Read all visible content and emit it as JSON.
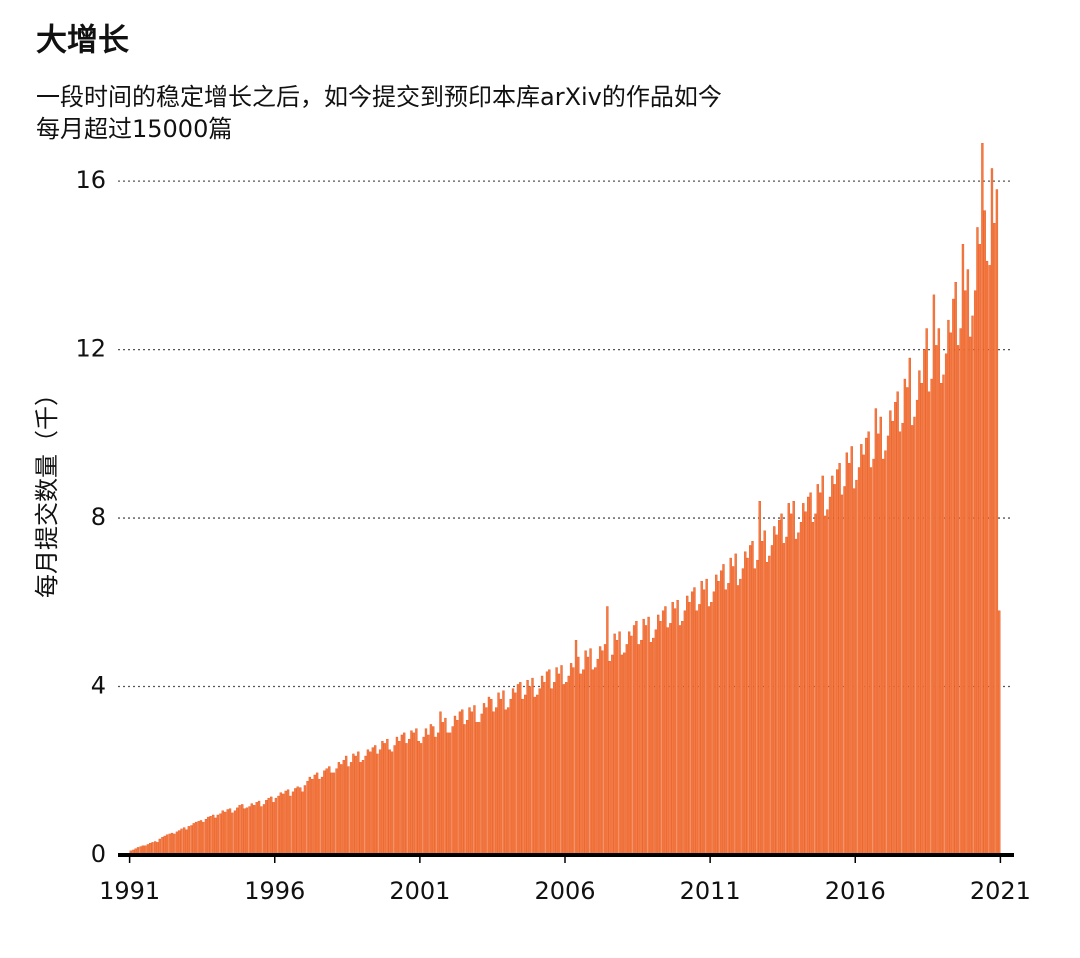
{
  "chart_data": {
    "type": "bar",
    "title": "大增长",
    "subtitle": [
      "一段时间的稳定增长之后，如今提交到预印本库arXiv的作品如今",
      "每月超过15000篇"
    ],
    "y_label": "每月提交数量（千）",
    "color": "#f47a42",
    "xlim": [
      1990.6,
      2021.4
    ],
    "xticks": [
      1991,
      1996,
      2001,
      2006,
      2011,
      2016,
      2021
    ],
    "ylim": [
      0,
      17
    ],
    "yticks": [
      0,
      4,
      8,
      12,
      16
    ],
    "grid": true,
    "x": [
      1991.04,
      1991.13,
      1991.21,
      1991.29,
      1991.38,
      1991.46,
      1991.54,
      1991.63,
      1991.71,
      1991.79,
      1991.88,
      1991.96,
      1992.04,
      1992.13,
      1992.21,
      1992.29,
      1992.38,
      1992.46,
      1992.54,
      1992.63,
      1992.71,
      1992.79,
      1992.88,
      1992.96,
      1993.04,
      1993.13,
      1993.21,
      1993.29,
      1993.38,
      1993.46,
      1993.54,
      1993.63,
      1993.71,
      1993.79,
      1993.88,
      1993.96,
      1994.04,
      1994.13,
      1994.21,
      1994.29,
      1994.38,
      1994.46,
      1994.54,
      1994.63,
      1994.71,
      1994.79,
      1994.88,
      1994.96,
      1995.04,
      1995.13,
      1995.21,
      1995.29,
      1995.38,
      1995.46,
      1995.54,
      1995.63,
      1995.71,
      1995.79,
      1995.88,
      1995.96,
      1996.04,
      1996.13,
      1996.21,
      1996.29,
      1996.38,
      1996.46,
      1996.54,
      1996.63,
      1996.71,
      1996.79,
      1996.88,
      1996.96,
      1997.04,
      1997.13,
      1997.21,
      1997.29,
      1997.38,
      1997.46,
      1997.54,
      1997.63,
      1997.71,
      1997.79,
      1997.88,
      1997.96,
      1998.04,
      1998.13,
      1998.21,
      1998.29,
      1998.38,
      1998.46,
      1998.54,
      1998.63,
      1998.71,
      1998.79,
      1998.88,
      1998.96,
      1999.04,
      1999.13,
      1999.21,
      1999.29,
      1999.38,
      1999.46,
      1999.54,
      1999.63,
      1999.71,
      1999.79,
      1999.88,
      1999.96,
      2000.04,
      2000.13,
      2000.21,
      2000.29,
      2000.38,
      2000.46,
      2000.54,
      2000.63,
      2000.71,
      2000.79,
      2000.88,
      2000.96,
      2001.04,
      2001.13,
      2001.21,
      2001.29,
      2001.38,
      2001.46,
      2001.54,
      2001.63,
      2001.71,
      2001.79,
      2001.88,
      2001.96,
      2002.04,
      2002.13,
      2002.21,
      2002.29,
      2002.38,
      2002.46,
      2002.54,
      2002.63,
      2002.71,
      2002.79,
      2002.88,
      2002.96,
      2003.04,
      2003.13,
      2003.21,
      2003.29,
      2003.38,
      2003.46,
      2003.54,
      2003.63,
      2003.71,
      2003.79,
      2003.88,
      2003.96,
      2004.04,
      2004.13,
      2004.21,
      2004.29,
      2004.38,
      2004.46,
      2004.54,
      2004.63,
      2004.71,
      2004.79,
      2004.88,
      2004.96,
      2005.04,
      2005.13,
      2005.21,
      2005.29,
      2005.38,
      2005.46,
      2005.54,
      2005.63,
      2005.71,
      2005.79,
      2005.88,
      2005.96,
      2006.04,
      2006.13,
      2006.21,
      2006.29,
      2006.38,
      2006.46,
      2006.54,
      2006.63,
      2006.71,
      2006.79,
      2006.88,
      2006.96,
      2007.04,
      2007.13,
      2007.21,
      2007.29,
      2007.38,
      2007.46,
      2007.54,
      2007.63,
      2007.71,
      2007.79,
      2007.88,
      2007.96,
      2008.04,
      2008.13,
      2008.21,
      2008.29,
      2008.38,
      2008.46,
      2008.54,
      2008.63,
      2008.71,
      2008.79,
      2008.88,
      2008.96,
      2009.04,
      2009.13,
      2009.21,
      2009.29,
      2009.38,
      2009.46,
      2009.54,
      2009.63,
      2009.71,
      2009.79,
      2009.88,
      2009.96,
      2010.04,
      2010.13,
      2010.21,
      2010.29,
      2010.38,
      2010.46,
      2010.54,
      2010.63,
      2010.71,
      2010.79,
      2010.88,
      2010.96,
      2011.04,
      2011.13,
      2011.21,
      2011.29,
      2011.38,
      2011.46,
      2011.54,
      2011.63,
      2011.71,
      2011.79,
      2011.88,
      2011.96,
      2012.04,
      2012.13,
      2012.21,
      2012.29,
      2012.38,
      2012.46,
      2012.54,
      2012.63,
      2012.71,
      2012.79,
      2012.88,
      2012.96,
      2013.04,
      2013.13,
      2013.21,
      2013.29,
      2013.38,
      2013.46,
      2013.54,
      2013.63,
      2013.71,
      2013.79,
      2013.88,
      2013.96,
      2014.04,
      2014.13,
      2014.21,
      2014.29,
      2014.38,
      2014.46,
      2014.54,
      2014.63,
      2014.71,
      2014.79,
      2014.88,
      2014.96,
      2015.04,
      2015.13,
      2015.21,
      2015.29,
      2015.38,
      2015.46,
      2015.54,
      2015.63,
      2015.71,
      2015.79,
      2015.88,
      2015.96,
      2016.04,
      2016.13,
      2016.21,
      2016.29,
      2016.38,
      2016.46,
      2016.54,
      2016.63,
      2016.71,
      2016.79,
      2016.88,
      2016.96,
      2017.04,
      2017.13,
      2017.21,
      2017.29,
      2017.38,
      2017.46,
      2017.54,
      2017.63,
      2017.71,
      2017.79,
      2017.88,
      2017.96,
      2018.04,
      2018.13,
      2018.21,
      2018.29,
      2018.38,
      2018.46,
      2018.54,
      2018.63,
      2018.71,
      2018.79,
      2018.88,
      2018.96,
      2019.04,
      2019.13,
      2019.21,
      2019.29,
      2019.38,
      2019.46,
      2019.54,
      2019.63,
      2019.71,
      2019.79,
      2019.88,
      2019.96,
      2020.04,
      2020.13,
      2020.21,
      2020.29,
      2020.38,
      2020.46,
      2020.54,
      2020.63,
      2020.71,
      2020.79,
      2020.88,
      2020.96
    ],
    "values": [
      0.1,
      0.12,
      0.15,
      0.18,
      0.2,
      0.22,
      0.22,
      0.25,
      0.28,
      0.3,
      0.32,
      0.3,
      0.38,
      0.42,
      0.45,
      0.48,
      0.5,
      0.52,
      0.5,
      0.55,
      0.58,
      0.62,
      0.65,
      0.6,
      0.68,
      0.7,
      0.75,
      0.78,
      0.8,
      0.82,
      0.78,
      0.85,
      0.9,
      0.92,
      0.95,
      0.88,
      0.95,
      0.98,
      1.05,
      1.02,
      1.08,
      1.1,
      1.0,
      1.05,
      1.12,
      1.18,
      1.2,
      1.1,
      1.12,
      1.15,
      1.22,
      1.18,
      1.25,
      1.28,
      1.15,
      1.2,
      1.3,
      1.35,
      1.38,
      1.25,
      1.35,
      1.4,
      1.48,
      1.45,
      1.52,
      1.55,
      1.4,
      1.5,
      1.58,
      1.62,
      1.6,
      1.5,
      1.65,
      1.75,
      1.85,
      1.8,
      1.9,
      1.95,
      1.8,
      1.85,
      2.0,
      2.05,
      2.1,
      1.95,
      1.95,
      2.05,
      2.2,
      2.15,
      2.25,
      2.35,
      2.1,
      2.2,
      2.4,
      2.35,
      2.45,
      2.2,
      2.25,
      2.35,
      2.5,
      2.45,
      2.55,
      2.6,
      2.4,
      2.5,
      2.7,
      2.65,
      2.75,
      2.5,
      2.45,
      2.6,
      2.8,
      2.7,
      2.85,
      2.9,
      2.65,
      2.75,
      2.95,
      2.9,
      3.0,
      2.7,
      2.65,
      2.8,
      3.0,
      2.85,
      3.1,
      3.05,
      2.8,
      2.9,
      3.4,
      3.15,
      3.25,
      2.9,
      2.9,
      3.05,
      3.3,
      3.2,
      3.4,
      3.45,
      3.1,
      3.2,
      3.5,
      3.4,
      3.55,
      3.15,
      3.15,
      3.35,
      3.6,
      3.5,
      3.75,
      3.7,
      3.4,
      3.5,
      3.85,
      3.7,
      3.9,
      3.45,
      3.5,
      3.7,
      3.95,
      3.85,
      4.05,
      4.1,
      3.7,
      3.8,
      4.15,
      4.0,
      4.2,
      3.75,
      3.8,
      3.95,
      4.25,
      4.1,
      4.35,
      4.4,
      3.95,
      4.1,
      4.45,
      4.3,
      4.5,
      4.05,
      4.1,
      4.25,
      4.55,
      4.45,
      5.1,
      4.7,
      4.3,
      4.4,
      4.85,
      4.7,
      4.9,
      4.4,
      4.45,
      4.65,
      4.95,
      4.85,
      5.0,
      5.9,
      4.6,
      4.75,
      5.25,
      5.1,
      5.3,
      4.75,
      4.8,
      5.0,
      5.3,
      5.2,
      5.45,
      5.55,
      5.0,
      5.1,
      5.6,
      5.45,
      5.65,
      5.05,
      5.15,
      5.35,
      5.7,
      5.55,
      5.8,
      5.9,
      5.4,
      5.5,
      6.0,
      5.85,
      6.05,
      5.45,
      5.55,
      5.8,
      6.15,
      6.0,
      6.25,
      6.35,
      5.8,
      5.95,
      6.5,
      6.3,
      6.55,
      5.9,
      6.0,
      6.25,
      6.65,
      6.5,
      6.75,
      6.9,
      6.3,
      6.45,
      7.05,
      6.85,
      7.15,
      6.4,
      6.55,
      6.8,
      7.2,
      7.05,
      7.35,
      7.45,
      6.8,
      7.0,
      8.4,
      7.45,
      7.7,
      6.95,
      7.1,
      7.35,
      7.8,
      7.6,
      7.95,
      8.1,
      7.4,
      7.55,
      8.35,
      8.1,
      8.4,
      7.5,
      7.65,
      7.9,
      8.35,
      8.15,
      8.5,
      8.6,
      7.9,
      8.1,
      8.8,
      8.6,
      9.0,
      8.05,
      8.2,
      8.5,
      9.0,
      8.8,
      9.15,
      9.3,
      8.55,
      8.75,
      9.55,
      9.3,
      9.7,
      8.7,
      8.9,
      9.2,
      9.75,
      9.5,
      9.9,
      10.05,
      9.2,
      9.4,
      10.6,
      10.0,
      10.4,
      9.4,
      9.6,
      9.95,
      10.55,
      10.3,
      10.75,
      11.0,
      10.05,
      10.25,
      11.3,
      11.1,
      11.8,
      10.2,
      10.4,
      10.8,
      11.5,
      11.2,
      12.0,
      12.5,
      11.0,
      11.3,
      13.3,
      12.1,
      12.5,
      11.2,
      11.4,
      11.9,
      12.7,
      12.4,
      13.2,
      13.6,
      12.1,
      12.5,
      14.5,
      13.4,
      13.9,
      12.3,
      12.8,
      13.4,
      14.9,
      14.5,
      16.9,
      15.3,
      14.1,
      14.0,
      16.3,
      15.0,
      15.8,
      5.8
    ]
  }
}
